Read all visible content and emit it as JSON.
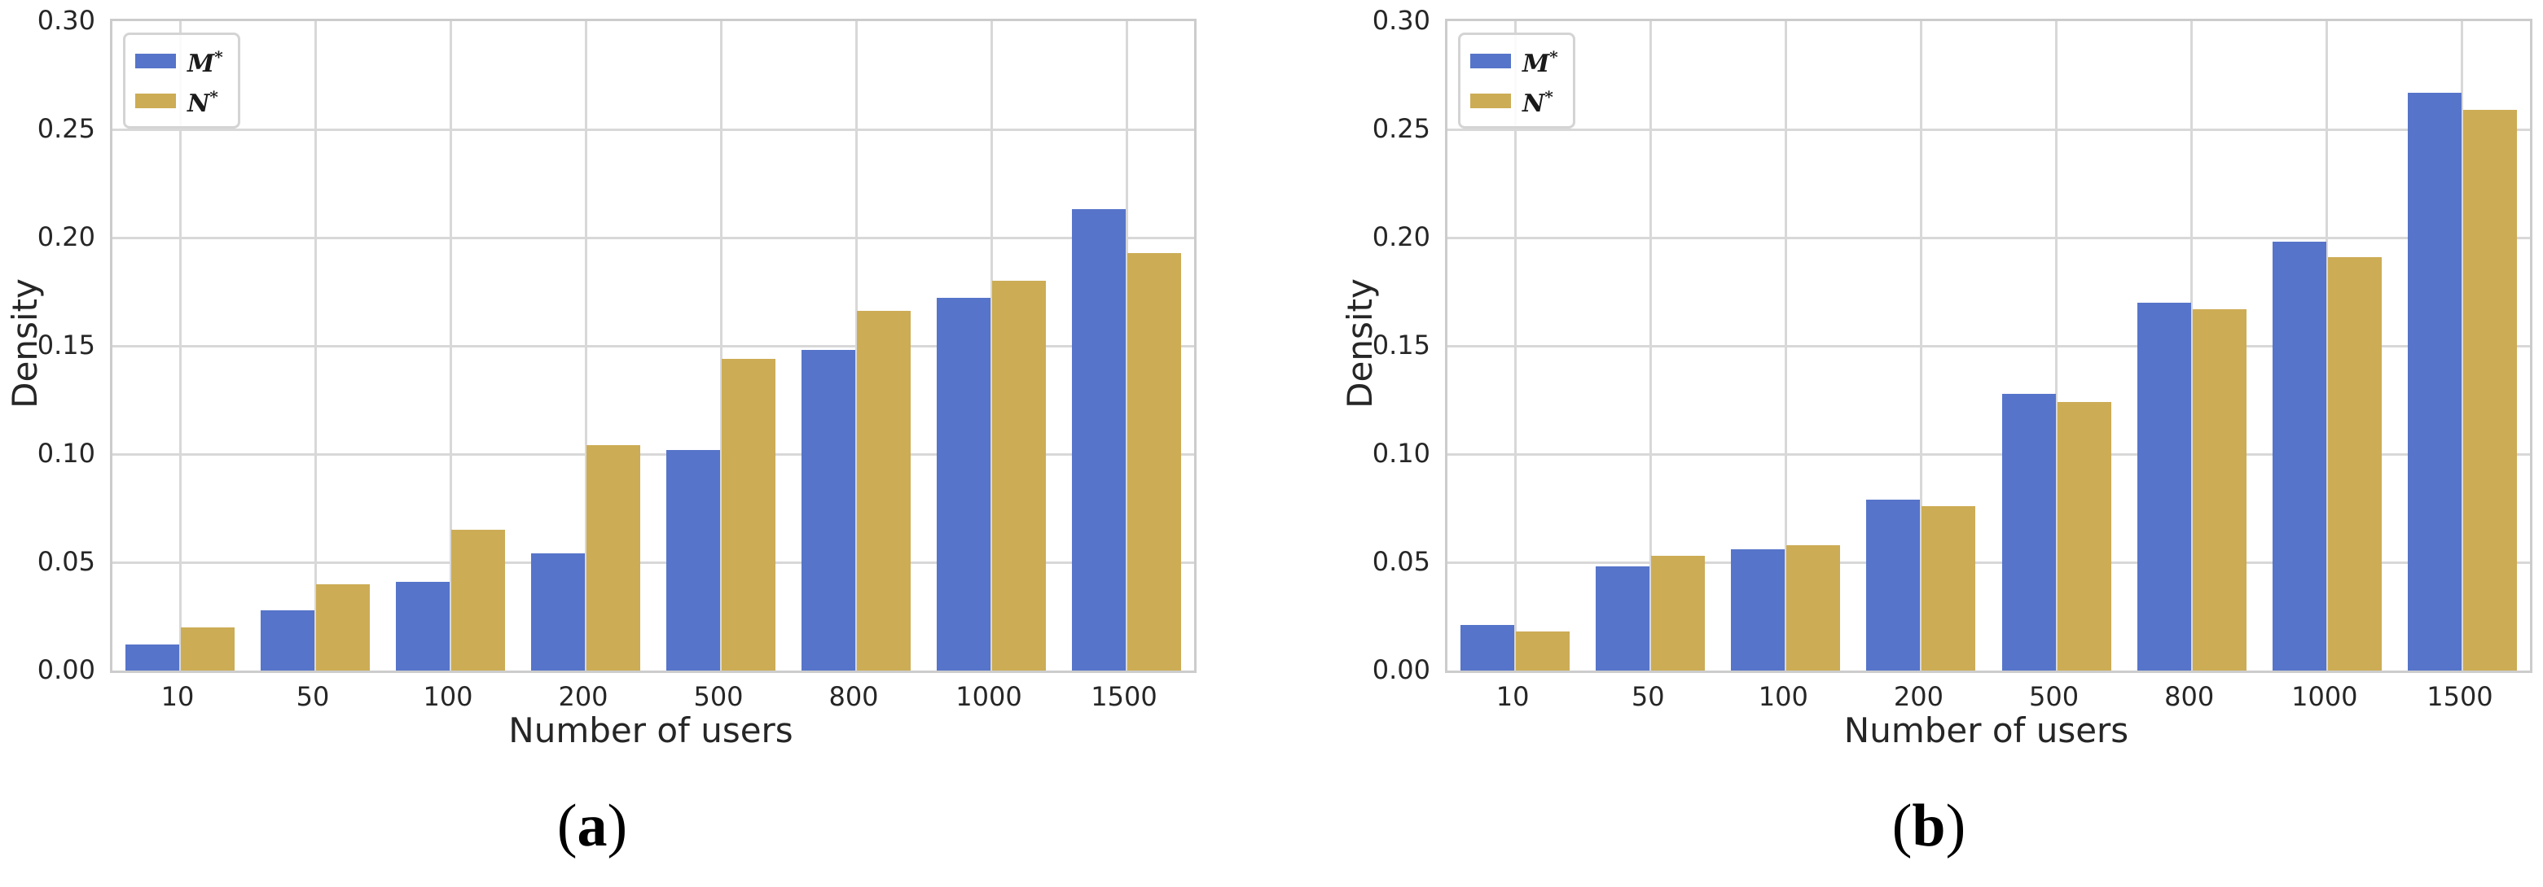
{
  "page": {
    "background": "#ffffff"
  },
  "palette": {
    "grid_color": "#d8d8d8",
    "spine_color": "#cccccc",
    "tick_text_color": "#262626"
  },
  "captions": [
    {
      "open": "(",
      "letter": "a",
      "close": ")"
    },
    {
      "open": "(",
      "letter": "b",
      "close": ")"
    }
  ],
  "chart_data": [
    {
      "type": "bar",
      "title": "",
      "xlabel": "Number of users",
      "ylabel": "Density",
      "categories": [
        "10",
        "50",
        "100",
        "200",
        "500",
        "800",
        "1000",
        "1500"
      ],
      "series": [
        {
          "name": "M*",
          "color": "#5674c9",
          "values": [
            0.012,
            0.028,
            0.041,
            0.054,
            0.102,
            0.148,
            0.172,
            0.213
          ]
        },
        {
          "name": "N*",
          "color": "#ccac55",
          "values": [
            0.02,
            0.04,
            0.065,
            0.104,
            0.144,
            0.166,
            0.18,
            0.193
          ]
        }
      ],
      "ylim": [
        0,
        0.3
      ],
      "yticks": [
        "0.00",
        "0.05",
        "0.10",
        "0.15",
        "0.20",
        "0.25",
        "0.30"
      ],
      "grid": true,
      "legend_position": "upper left",
      "legend": [
        {
          "letter": "M",
          "sup": "*"
        },
        {
          "letter": "N",
          "sup": "*"
        }
      ]
    },
    {
      "type": "bar",
      "title": "",
      "xlabel": "Number of users",
      "ylabel": "Density",
      "categories": [
        "10",
        "50",
        "100",
        "200",
        "500",
        "800",
        "1000",
        "1500"
      ],
      "series": [
        {
          "name": "M*",
          "color": "#5674c9",
          "values": [
            0.021,
            0.048,
            0.056,
            0.079,
            0.128,
            0.17,
            0.198,
            0.267
          ]
        },
        {
          "name": "N*",
          "color": "#ccac55",
          "values": [
            0.018,
            0.053,
            0.058,
            0.076,
            0.124,
            0.167,
            0.191,
            0.259
          ]
        }
      ],
      "ylim": [
        0,
        0.3
      ],
      "yticks": [
        "0.00",
        "0.05",
        "0.10",
        "0.15",
        "0.20",
        "0.25",
        "0.30"
      ],
      "grid": true,
      "legend_position": "upper left",
      "legend": [
        {
          "letter": "M",
          "sup": "*"
        },
        {
          "letter": "N",
          "sup": "*"
        }
      ]
    }
  ]
}
